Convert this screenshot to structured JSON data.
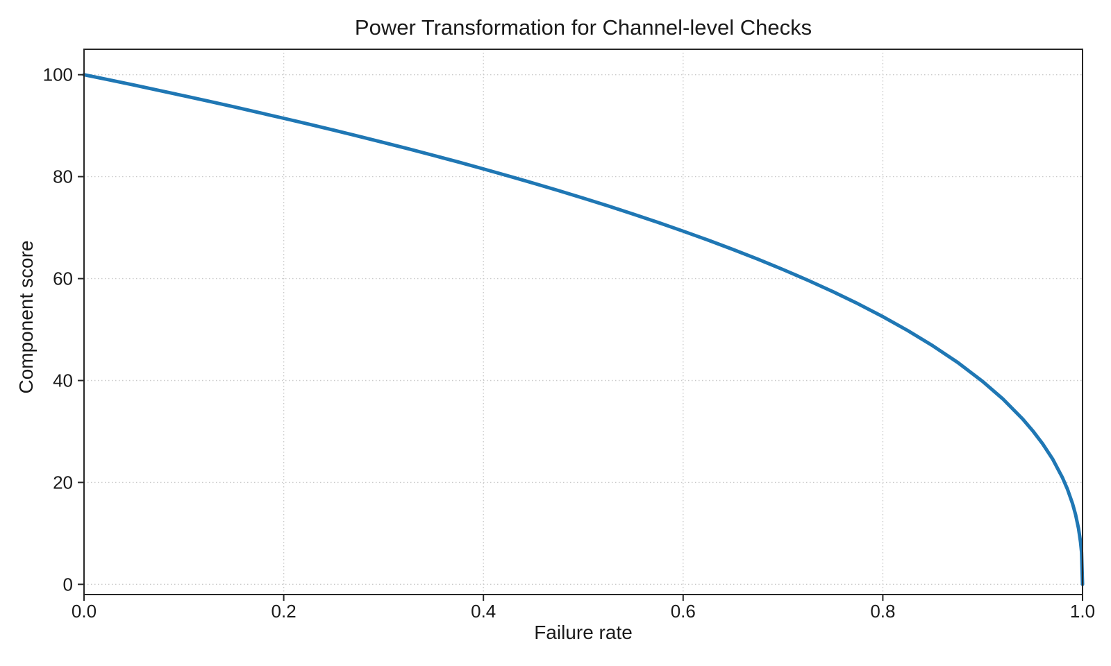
{
  "chart_data": {
    "type": "line",
    "title": "Power Transformation for Channel-level Checks",
    "xlabel": "Failure rate",
    "ylabel": "Component score",
    "xlim": [
      0.0,
      1.0
    ],
    "ylim": [
      -2,
      105
    ],
    "x_ticks": [
      0.0,
      0.2,
      0.4,
      0.6,
      0.8,
      1.0
    ],
    "x_tick_labels": [
      "0.0",
      "0.2",
      "0.4",
      "0.6",
      "0.8",
      "1.0"
    ],
    "y_ticks": [
      0,
      20,
      40,
      60,
      80,
      100
    ],
    "y_tick_labels": [
      "0",
      "20",
      "40",
      "60",
      "80",
      "100"
    ],
    "grid": true,
    "grid_style": "dotted",
    "legend": "none",
    "grid_color": "#c9c9c9",
    "axis_color": "#262626",
    "text_color": "#1a1a1a",
    "series": [
      {
        "name": "component-score-curve",
        "color": "#1f77b4",
        "line_width": 5,
        "x": [
          0,
          0.025,
          0.05,
          0.075,
          0.1,
          0.125,
          0.15,
          0.175,
          0.2,
          0.225,
          0.25,
          0.275,
          0.3,
          0.325,
          0.35,
          0.375,
          0.4,
          0.425,
          0.45,
          0.475,
          0.5,
          0.525,
          0.55,
          0.575,
          0.6,
          0.625,
          0.65,
          0.675,
          0.7,
          0.725,
          0.75,
          0.775,
          0.8,
          0.825,
          0.85,
          0.875,
          0.9,
          0.92,
          0.94,
          0.95,
          0.96,
          0.97,
          0.98,
          0.985,
          0.99,
          0.993,
          0.996,
          0.998,
          0.999,
          1.0
        ],
        "y": [
          100,
          98.99,
          97.97,
          96.93,
          95.87,
          94.8,
          93.71,
          92.59,
          91.46,
          90.31,
          89.13,
          87.93,
          86.7,
          85.45,
          84.17,
          82.86,
          81.52,
          80.14,
          78.73,
          77.28,
          75.79,
          74.25,
          72.66,
          71.02,
          69.31,
          67.55,
          65.71,
          63.79,
          61.78,
          59.67,
          57.43,
          55.07,
          52.53,
          49.8,
          46.82,
          43.53,
          39.81,
          36.41,
          32.45,
          30.17,
          27.59,
          24.6,
          20.91,
          18.64,
          15.85,
          13.74,
          10.99,
          8.33,
          6.31,
          0
        ]
      }
    ]
  }
}
